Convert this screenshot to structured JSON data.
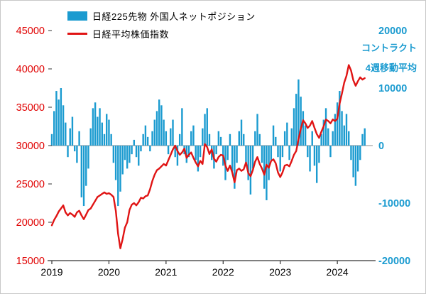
{
  "legend": {
    "bar_label": "日経225先物 外国人ネットポジション",
    "line_label": "日経平均株価指数"
  },
  "annotations": {
    "unit_label": "コントラクト",
    "ma_label": "4週移動平均"
  },
  "colors": {
    "bar": "#1b9bd0",
    "line": "#e01414",
    "left_axis_text": "#e00000",
    "right_axis_text": "#1b9bd0",
    "x_axis_text": "#000000",
    "zero_line": "#8c8c8c",
    "axis_line": "#333333"
  },
  "chart_data": {
    "type": "bar",
    "note": "dual-axis combo: blue bars = Nikkei 225 futures foreigners net position (right axis, contracts, 4-week moving average); red line = Nikkei stock average index (left axis)",
    "x_start": 2019.0,
    "x_step": 0.04,
    "left_axis": {
      "min": 15000,
      "max": 45000,
      "ticks": [
        45000,
        40000,
        35000,
        30000,
        25000,
        20000,
        15000
      ],
      "labels": [
        "45000",
        "40000",
        "35000",
        "30000",
        "25000",
        "20000",
        "15000"
      ]
    },
    "right_axis": {
      "min": -20000,
      "max": 20000,
      "ticks": [
        20000,
        10000,
        0,
        -10000,
        -20000
      ],
      "labels": [
        "20000",
        "10000",
        "0",
        "-10000",
        "-20000"
      ]
    },
    "x_axis": {
      "ticks": [
        2019,
        2020,
        2021,
        2022,
        2023,
        2024
      ],
      "labels": [
        "2019",
        "2020",
        "2021",
        "2022",
        "2023",
        "2024"
      ]
    },
    "series": [
      {
        "name": "日経225先物 外国人ネットポジション",
        "type": "bar",
        "axis": "right",
        "values": [
          2000,
          6000,
          9500,
          8000,
          10000,
          7000,
          4000,
          -2000,
          3000,
          5000,
          -1000,
          -3000,
          2500,
          -9000,
          -10500,
          -7000,
          -4000,
          3000,
          6500,
          7500,
          5000,
          6500,
          4000,
          2000,
          5500,
          4500,
          2000,
          -3000,
          -6000,
          -10500,
          -8000,
          -5000,
          -2500,
          -4000,
          -3000,
          -1500,
          1000,
          -2000,
          -3500,
          -1000,
          2000,
          3500,
          1500,
          -1000,
          2500,
          4500,
          6000,
          8000,
          7000,
          4500,
          2500,
          -1500,
          3000,
          4500,
          -2000,
          -3500,
          2000,
          6500,
          -1500,
          -3000,
          -2000,
          2500,
          3500,
          -2500,
          -4500,
          -2000,
          3000,
          5500,
          6500,
          2000,
          -2500,
          -4000,
          -1500,
          2500,
          1500,
          -3500,
          -6000,
          -2500,
          2000,
          -4500,
          -7500,
          -3000,
          2500,
          4500,
          2000,
          -3500,
          -6000,
          -8500,
          -4000,
          2500,
          5500,
          2000,
          -3000,
          -7500,
          -9500,
          -6000,
          -2500,
          3500,
          1500,
          -2000,
          -4500,
          -2000,
          2500,
          4000,
          -2500,
          3000,
          6500,
          9000,
          11500,
          8500,
          6000,
          3500,
          -2000,
          -4500,
          2500,
          -3500,
          -6500,
          -3000,
          2000,
          4500,
          6500,
          3000,
          -2000,
          2500,
          5500,
          7500,
          9500,
          6000,
          3500,
          5500,
          2500,
          -2500,
          -5500,
          -7000,
          -4500,
          -2500,
          2000,
          3000
        ]
      },
      {
        "name": "日経平均株価指数",
        "type": "line",
        "axis": "left",
        "values": [
          19600,
          20300,
          20800,
          21400,
          21800,
          22200,
          21300,
          20900,
          21200,
          21000,
          20700,
          21300,
          21500,
          20900,
          20400,
          21000,
          21600,
          21800,
          22300,
          22800,
          23300,
          23500,
          23700,
          23900,
          23700,
          23800,
          23600,
          23300,
          21500,
          18500,
          16600,
          17800,
          19300,
          20000,
          21600,
          22300,
          22500,
          22200,
          22600,
          23200,
          23100,
          23400,
          23500,
          24300,
          25400,
          26200,
          26800,
          27000,
          27300,
          27600,
          27400,
          28100,
          28800,
          29500,
          30000,
          29300,
          28800,
          29100,
          29600,
          28400,
          28800,
          29100,
          28400,
          27800,
          27300,
          28000,
          27600,
          30200,
          29800,
          28900,
          29500,
          28300,
          27900,
          28500,
          28800,
          28700,
          27400,
          26700,
          27400,
          26500,
          25200,
          26800,
          27000,
          26700,
          26900,
          27800,
          26400,
          26000,
          26800,
          27900,
          28500,
          27600,
          27000,
          26200,
          27500,
          27100,
          28000,
          28200,
          27700,
          26500,
          25900,
          26500,
          27400,
          27500,
          27300,
          28000,
          28800,
          29300,
          30800,
          32200,
          33300,
          32900,
          32300,
          32600,
          33200,
          32300,
          31500,
          31000,
          31800,
          32500,
          33400,
          33200,
          32900,
          33400,
          33200,
          33500,
          35500,
          36800,
          38200,
          39100,
          40500,
          39800,
          38500,
          37800,
          38400,
          38900,
          38600,
          38800
        ]
      }
    ]
  }
}
